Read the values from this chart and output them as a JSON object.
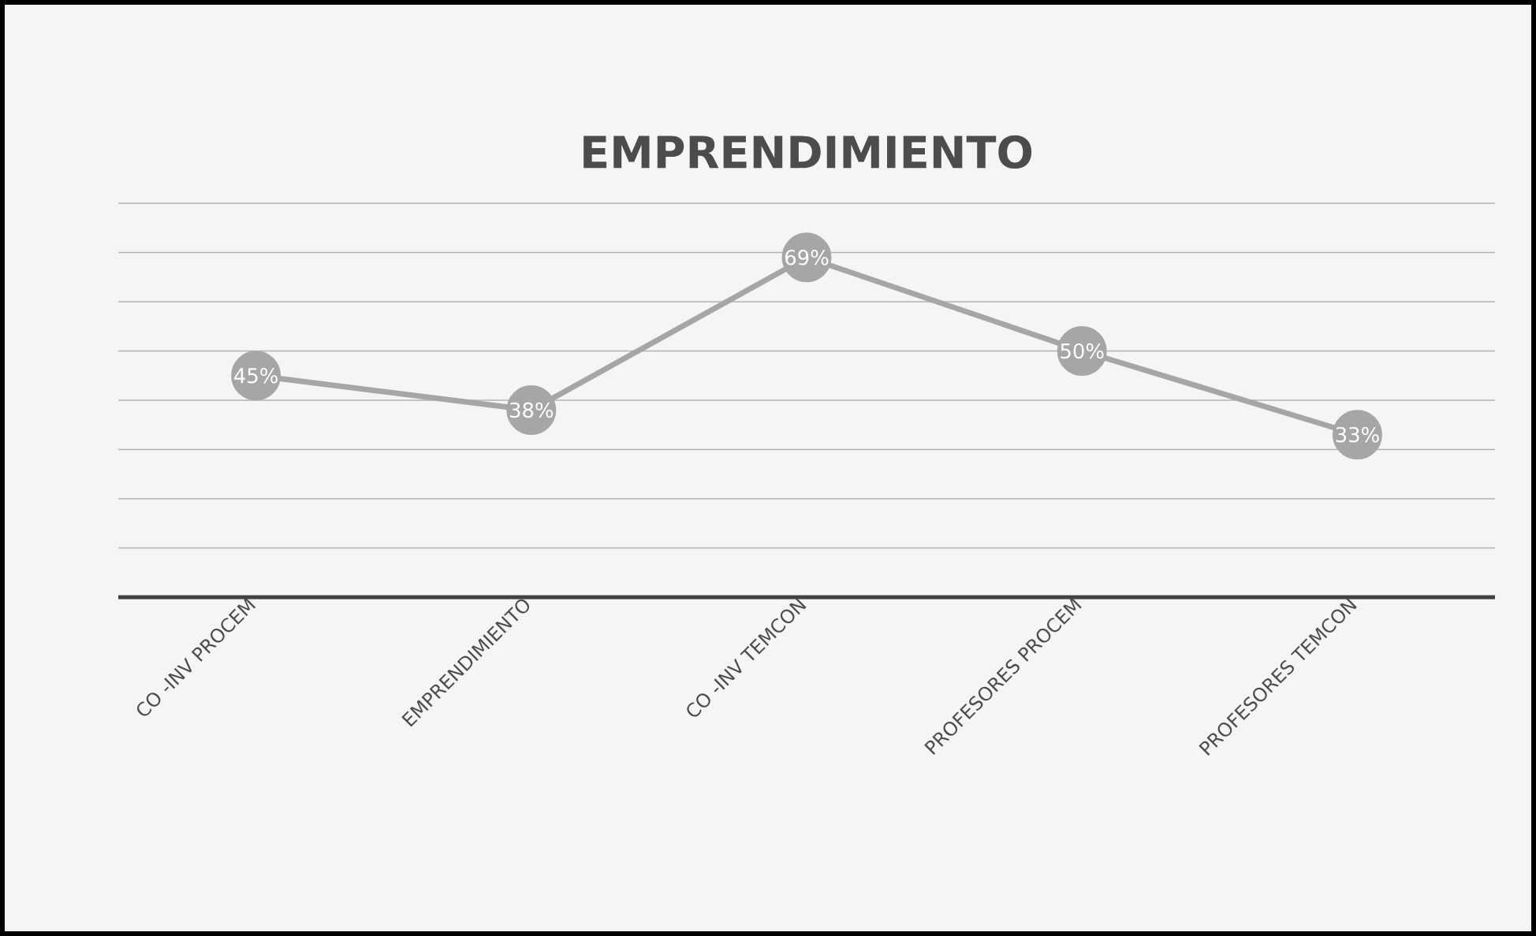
{
  "chart_data": {
    "type": "line",
    "title": "EMPRENDIMIENTO",
    "categories": [
      "CO -INV PROCEM",
      "EMPRENDIMIENTO",
      "CO -INV TEMCON",
      "PROFESORES PROCEM",
      "PROFESORES TEMCON"
    ],
    "values": [
      45,
      38,
      69,
      50,
      33
    ],
    "value_labels": [
      "45%",
      "38%",
      "69%",
      "50%",
      "33%"
    ],
    "color": "#a6a6a6",
    "marker": "circle",
    "line_style": "solid",
    "grid": "y",
    "ylim": [
      0,
      80
    ],
    "yticks": [
      {
        "value": 0,
        "label": null
      },
      {
        "value": 10,
        "label": null
      },
      {
        "value": 20,
        "label": null
      },
      {
        "value": 30,
        "label": null
      },
      {
        "value": 40,
        "label": null
      },
      {
        "value": 50,
        "label": null
      },
      {
        "value": 60,
        "label": null
      },
      {
        "value": 70,
        "label": null
      },
      {
        "value": 80,
        "label": null
      }
    ],
    "tick_labels": "x"
  }
}
